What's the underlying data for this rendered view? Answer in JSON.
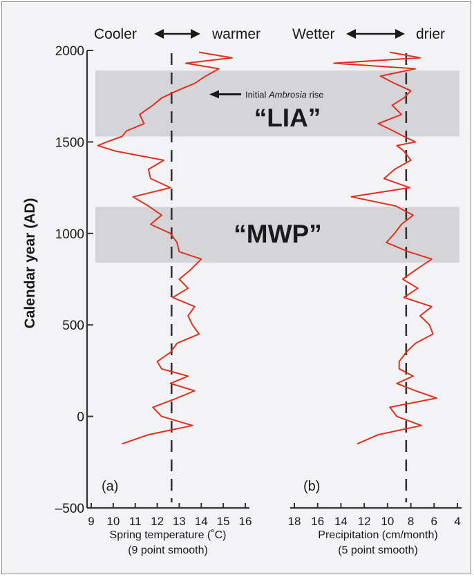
{
  "chart_data": {
    "type": "line",
    "ylabel": "Calendar year (AD)",
    "ylim": [
      -500,
      2000
    ],
    "yticks": [
      -500,
      0,
      500,
      1000,
      1500,
      2000
    ],
    "grid": false,
    "line_color": "#e0301e",
    "band_color": "#c9c9cf",
    "bands": [
      {
        "label": "“LIA”",
        "y_from": 1530,
        "y_to": 1890
      },
      {
        "label": "“MWP”",
        "y_from": 840,
        "y_to": 1145
      }
    ],
    "annotation": {
      "prefix": "Initial ",
      "italic": "Ambrosia",
      "suffix": " rise",
      "year": 1760
    },
    "panels": [
      {
        "id": "a",
        "panel_label": "(a)",
        "header_left": "Cooler",
        "header_right": "warmer",
        "xlabel": "Spring temperature (˚C)",
        "xlabel_sub": "(9 point smooth)",
        "xlim": [
          9,
          16
        ],
        "xticks": [
          9,
          10,
          11,
          12,
          13,
          14,
          15,
          16
        ],
        "reference_x": 12.65,
        "series": {
          "y": [
            -150,
            -100,
            -50,
            0,
            50,
            100,
            140,
            180,
            220,
            260,
            300,
            350,
            400,
            450,
            500,
            550,
            600,
            650,
            700,
            750,
            800,
            860,
            900,
            950,
            1000,
            1050,
            1100,
            1150,
            1200,
            1250,
            1300,
            1350,
            1400,
            1450,
            1480,
            1500,
            1530,
            1560,
            1600,
            1650,
            1700,
            1740,
            1780,
            1820,
            1860,
            1900,
            1930,
            1960,
            1990
          ],
          "x": [
            10.4,
            11.6,
            13.6,
            12.2,
            11.8,
            12.9,
            13.7,
            12.6,
            13.4,
            12.2,
            12.0,
            12.6,
            12.9,
            13.9,
            13.6,
            13.4,
            13.7,
            12.7,
            13.4,
            13.0,
            13.5,
            14.0,
            13.0,
            12.9,
            12.6,
            11.7,
            12.2,
            11.6,
            10.9,
            12.6,
            11.7,
            11.6,
            12.3,
            10.1,
            9.3,
            9.7,
            10.4,
            10.6,
            11.4,
            11.2,
            11.8,
            12.2,
            12.9,
            13.7,
            14.2,
            14.8,
            13.3,
            15.4,
            13.9
          ]
        }
      },
      {
        "id": "b",
        "panel_label": "(b)",
        "header_left": "Wetter",
        "header_right": "drier",
        "xlabel": "Precipitation (cm/month)",
        "xlabel_sub": "(5 point smooth)",
        "xlim": [
          18,
          4
        ],
        "xticks": [
          18,
          16,
          14,
          12,
          10,
          8,
          6,
          4
        ],
        "reference_x": 8.4,
        "series": {
          "y": [
            -150,
            -100,
            -50,
            0,
            50,
            100,
            140,
            180,
            220,
            260,
            300,
            350,
            400,
            450,
            500,
            550,
            600,
            650,
            700,
            750,
            800,
            860,
            900,
            950,
            1000,
            1050,
            1100,
            1150,
            1200,
            1250,
            1300,
            1350,
            1400,
            1450,
            1480,
            1500,
            1530,
            1560,
            1600,
            1650,
            1700,
            1740,
            1780,
            1820,
            1860,
            1900,
            1930,
            1960,
            1990
          ],
          "x": [
            12.6,
            10.8,
            7.1,
            9.2,
            9.8,
            5.8,
            7.6,
            9.2,
            7.8,
            9.0,
            9.0,
            8.4,
            7.6,
            6.1,
            6.4,
            7.2,
            6.2,
            8.6,
            7.4,
            8.7,
            7.6,
            6.2,
            8.2,
            10.1,
            9.4,
            8.8,
            7.8,
            9.3,
            13.1,
            8.1,
            10.3,
            9.4,
            8.0,
            8.6,
            9.2,
            7.6,
            8.6,
            9.5,
            10.8,
            8.8,
            9.6,
            8.6,
            8.0,
            9.4,
            10.6,
            7.6,
            14.6,
            7.2,
            9.8
          ]
        }
      }
    ]
  }
}
